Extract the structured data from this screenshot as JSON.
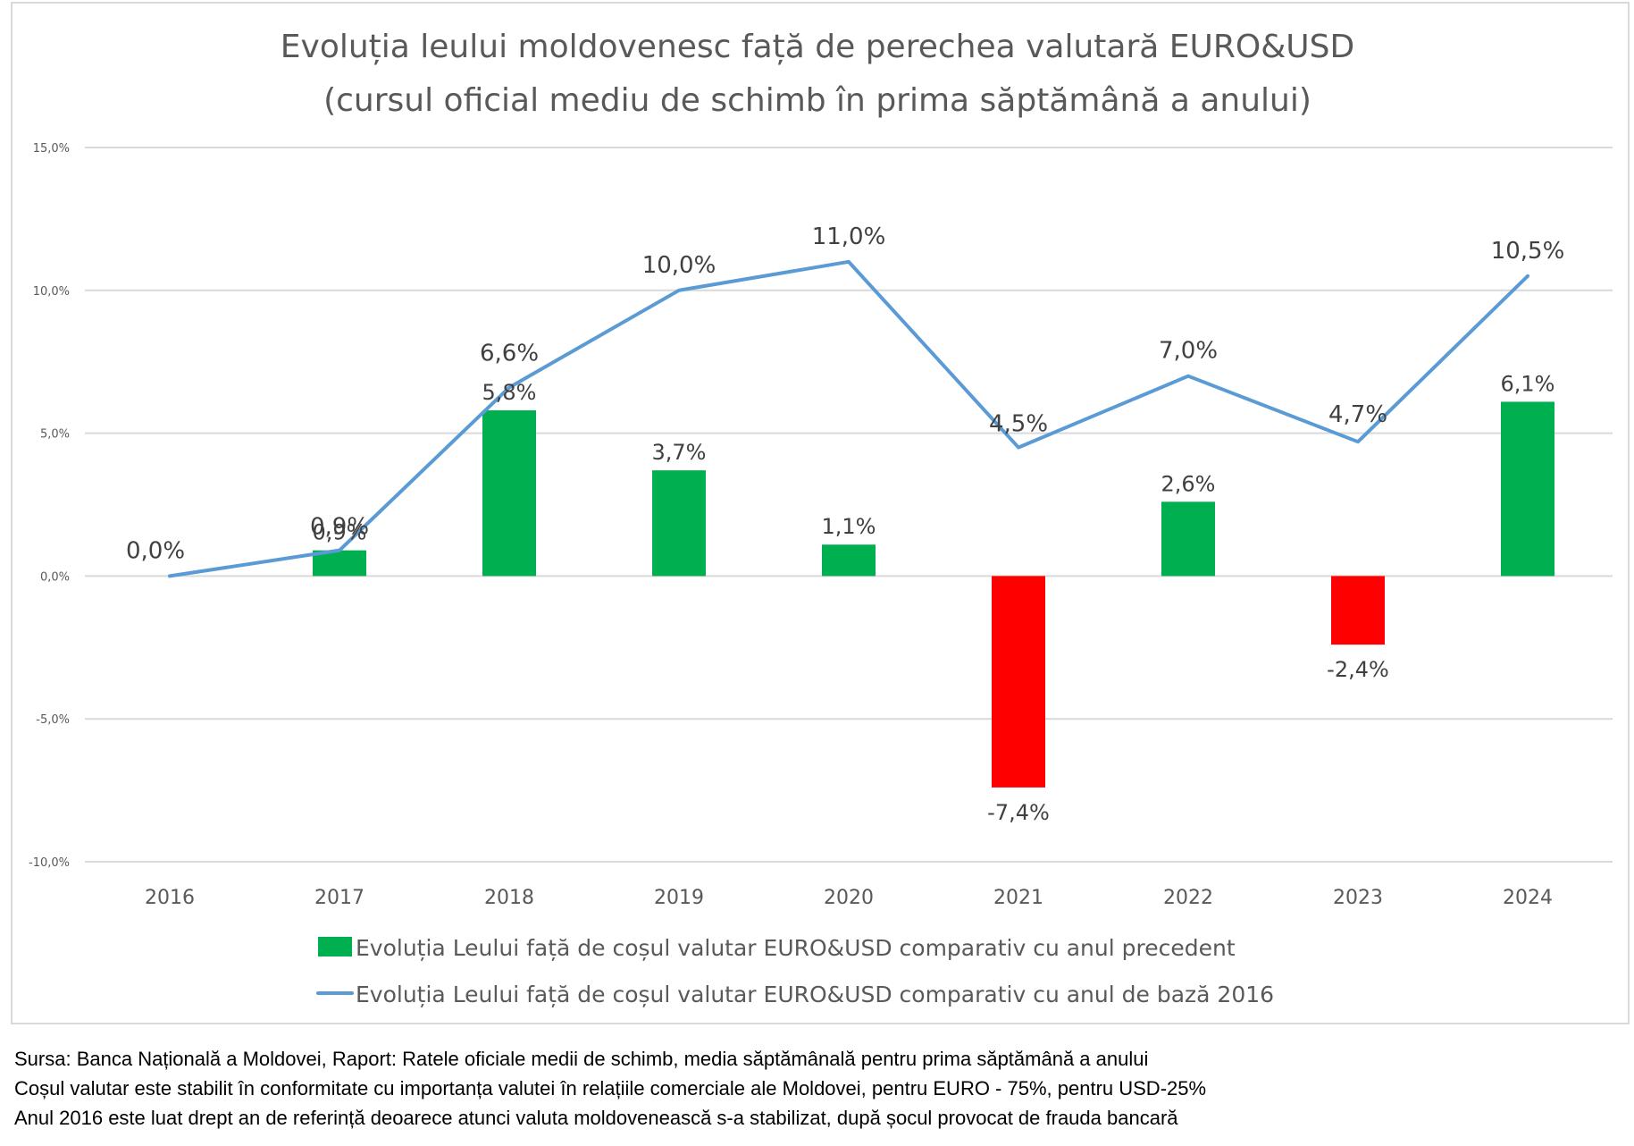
{
  "chart_data": {
    "type": "bar",
    "title": "Evoluția leului moldovenesc față de perechea valutară EURO&USD",
    "subtitle": "(cursul oficial mediu de schimb în prima săptămână a anului)",
    "xlabel": "",
    "ylabel": "",
    "categories": [
      "2016",
      "2017",
      "2018",
      "2019",
      "2020",
      "2021",
      "2022",
      "2023",
      "2024"
    ],
    "ylim": [
      -10,
      15
    ],
    "yticks": [
      15,
      10,
      5,
      0,
      -5,
      -10
    ],
    "ytick_labels": [
      "15,0%",
      "10,0%",
      "5,0%",
      "0,0%",
      "-5,0%",
      "-10,0%"
    ],
    "grid": true,
    "legend_position": "bottom",
    "series": [
      {
        "name": "Evoluția Leului față de coșul valutar EURO&USD comparativ cu anul precedent",
        "type": "bar",
        "values": [
          null,
          0.9,
          5.8,
          3.7,
          1.1,
          -7.4,
          2.6,
          -2.4,
          6.1
        ],
        "labels": [
          "",
          "0,9%",
          "5,8%",
          "3,7%",
          "1,1%",
          "-7,4%",
          "2,6%",
          "-2,4%",
          "6,1%"
        ],
        "color_positive": "#00b050",
        "color_negative": "#ff0000"
      },
      {
        "name": "Evoluția Leului față de coșul valutar EURO&USD comparativ cu anul de bază 2016",
        "type": "line",
        "values": [
          0.0,
          0.9,
          6.6,
          10.0,
          11.0,
          4.5,
          7.0,
          4.7,
          10.5
        ],
        "labels": [
          "0,0%",
          "0,9%",
          "6,6%",
          "10,0%",
          "11,0%",
          "4,5%",
          "7,0%",
          "4,7%",
          "10,5%"
        ],
        "color": "#5b9bd5"
      }
    ]
  },
  "footer": {
    "lines": [
      "Sursa: Banca Națională a Moldovei, Raport: Ratele oficiale medii de schimb, media săptămânală pentru prima săptămână a anului",
      "Coșul valutar este stabilit în conformitate cu importanța valutei în relațiile comerciale ale Moldovei, pentru EURO - 75%, pentru USD-25%",
      "Anul 2016 este luat drept an de referință deoarece atunci valuta moldovenească  s-a stabilizat, după șocul provocat de frauda bancară"
    ]
  }
}
